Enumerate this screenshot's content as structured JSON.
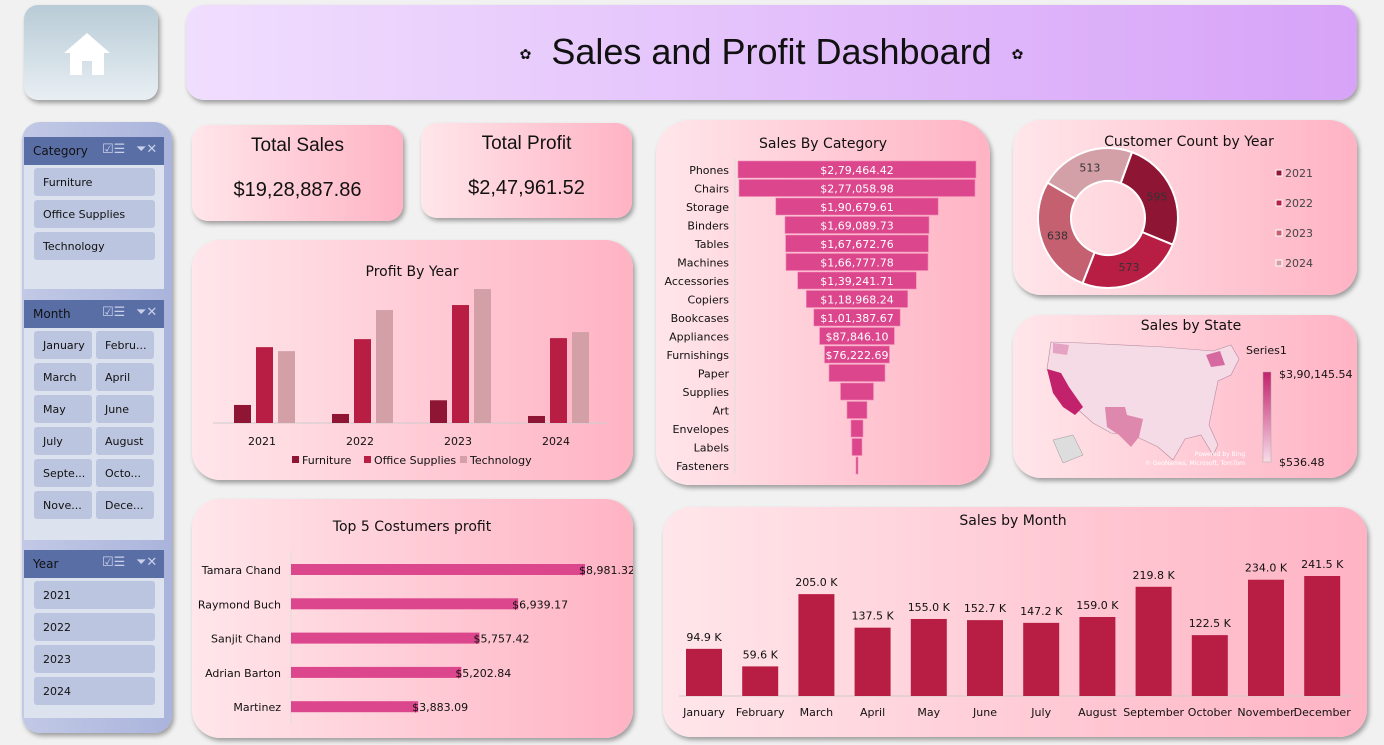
{
  "home": {
    "icon": "home-icon"
  },
  "title": "Sales and Profit Dashboard",
  "title_decoration": "✿",
  "kpis": {
    "total_sales_label": "Total Sales",
    "total_sales": "$19,28,887.86",
    "total_profit_label": "Total Profit",
    "total_profit": "$2,47,961.52"
  },
  "slicers": [
    {
      "title": "Category",
      "items": [
        "Furniture",
        "Office Supplies",
        "Technology"
      ]
    },
    {
      "title": "Month",
      "items": [
        "January",
        "Febru...",
        "March",
        "April",
        "May",
        "June",
        "July",
        "August",
        "Septe...",
        "Octo...",
        "Nove...",
        "Dece..."
      ]
    },
    {
      "title": "Year",
      "items": [
        "2021",
        "2022",
        "2023",
        "2024"
      ]
    }
  ],
  "colors": {
    "dark": "#8e1533",
    "crimson": "#b81e44",
    "rose": "#d4a0a8",
    "magenta": "#dc468c",
    "mid": "#c46070"
  },
  "chart_data": [
    {
      "id": "profit_by_year",
      "type": "bar",
      "title": "Profit By Year",
      "categories": [
        "2021",
        "2022",
        "2023",
        "2024"
      ],
      "series": [
        {
          "name": "Furniture",
          "values": [
            5400,
            2700,
            6800,
            2100
          ]
        },
        {
          "name": "Office Supplies",
          "values": [
            22700,
            25100,
            35300,
            25400
          ]
        },
        {
          "name": "Technology",
          "values": [
            21500,
            33800,
            40100,
            27200
          ]
        }
      ],
      "legend": "bottom",
      "grid": false
    },
    {
      "id": "sales_by_category",
      "type": "bar",
      "orientation": "funnel",
      "title": "Sales By Category",
      "categories": [
        "Phones",
        "Chairs",
        "Storage",
        "Binders",
        "Tables",
        "Machines",
        "Accessories",
        "Copiers",
        "Bookcases",
        "Appliances",
        "Furnishings",
        "Paper",
        "Supplies",
        "Art",
        "Envelopes",
        "Labels",
        "Fasteners"
      ],
      "values": [
        279464.42,
        277058.98,
        190679.61,
        169089.73,
        167672.76,
        166777.78,
        139241.71,
        118968.24,
        101387.67,
        87846.1,
        76222.69,
        65700,
        38700,
        23500,
        14100,
        11700,
        1600
      ],
      "labels": [
        "$2,79,464.42",
        "$2,77,058.98",
        "$1,90,679.61",
        "$1,69,089.73",
        "$1,67,672.76",
        "$1,66,777.78",
        "$1,39,241.71",
        "$1,18,968.24",
        "$1,01,387.67",
        "$87,846.10",
        "$76,222.69",
        "",
        "",
        "",
        "",
        "",
        ""
      ]
    },
    {
      "id": "customer_count_by_year",
      "type": "pie",
      "donut": true,
      "title": "Customer Count by Year",
      "categories": [
        "2021",
        "2022",
        "2023",
        "2024"
      ],
      "values": [
        595,
        573,
        638,
        513
      ],
      "legend": "right"
    },
    {
      "id": "sales_by_state",
      "type": "heatmap",
      "map": "USA",
      "title": "Sales by State",
      "legend_title": "Series1",
      "max_label": "$3,90,145.54",
      "min_label": "$536.48",
      "attribution": [
        "Powered by Bing",
        "© GeoNames, Microsoft, TomTom"
      ]
    },
    {
      "id": "top5_customers",
      "type": "bar",
      "orientation": "horizontal",
      "title": "Top 5 Costumers profit",
      "categories": [
        "Tamara Chand",
        "Raymond Buch",
        "Sanjit Chand",
        "Adrian Barton",
        "Martinez"
      ],
      "values": [
        8981.32,
        6939.17,
        5757.42,
        5202.84,
        3883.09
      ],
      "labels": [
        "$8,981.32",
        "$6,939.17",
        "$5,757.42",
        "$5,202.84",
        "$3,883.09"
      ]
    },
    {
      "id": "sales_by_month",
      "type": "bar",
      "title": "Sales by Month",
      "categories": [
        "January",
        "February",
        "March",
        "April",
        "May",
        "June",
        "July",
        "August",
        "September",
        "October",
        "November",
        "December"
      ],
      "values": [
        94.9,
        59.6,
        205.0,
        137.5,
        155.0,
        152.7,
        147.2,
        159.0,
        219.8,
        122.5,
        234.0,
        241.5
      ],
      "labels": [
        "94.9 K",
        "59.6 K",
        "205.0 K",
        "137.5 K",
        "155.0 K",
        "152.7 K",
        "147.2 K",
        "159.0 K",
        "219.8 K",
        "122.5 K",
        "234.0 K",
        "241.5 K"
      ]
    }
  ]
}
